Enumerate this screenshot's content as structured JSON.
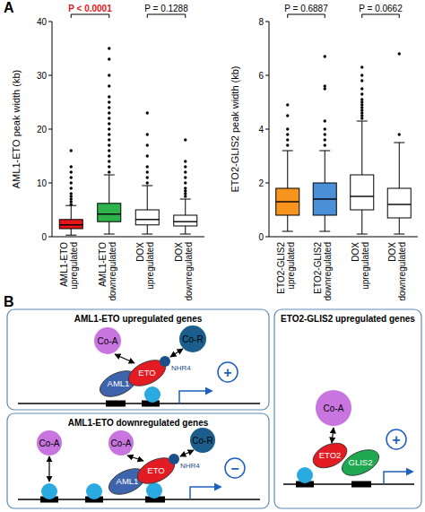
{
  "panel_labels": [
    "A",
    "B"
  ],
  "chart_data": [
    {
      "type": "box",
      "y_label": "AML1-ETO peak width (kb)",
      "categories": [
        "AML1-ETO upregulated",
        "AML1-ETO downregulated",
        "DOX upregulated",
        "DOX downregulated"
      ],
      "colors": [
        "#e3161b",
        "#2db34a",
        "#ffffff",
        "#ffffff"
      ],
      "ylim": [
        0,
        40
      ],
      "yticks": [
        0,
        10,
        20,
        30,
        40
      ],
      "boxes": [
        {
          "min": 0.3,
          "q1": 1.5,
          "median": 2.2,
          "q3": 3.2,
          "max": 5.8,
          "outliers": [
            6,
            6.5,
            7,
            7.5,
            8,
            9,
            10,
            11,
            12,
            13,
            16
          ]
        },
        {
          "min": 0.5,
          "q1": 2.8,
          "median": 4.2,
          "q3": 6.2,
          "max": 11.5,
          "outliers": [
            12,
            13,
            14,
            15,
            16,
            17,
            18,
            19,
            20,
            21,
            22,
            23,
            24,
            25,
            26,
            28,
            30,
            33,
            35
          ]
        },
        {
          "min": 0.5,
          "q1": 2.2,
          "median": 3.2,
          "q3": 5,
          "max": 9.5,
          "outliers": [
            10,
            11,
            12,
            13,
            15,
            17,
            19,
            23
          ]
        },
        {
          "min": 0.5,
          "q1": 2,
          "median": 2.8,
          "q3": 4,
          "max": 7,
          "outliers": [
            7.5,
            8,
            8.5,
            9,
            10,
            11,
            12,
            13,
            14,
            18
          ]
        }
      ],
      "comparisons": [
        {
          "label": "P < 0.0001",
          "groups": [
            0,
            1
          ],
          "color": "#e3161b"
        },
        {
          "label": "P = 0.1288",
          "groups": [
            2,
            3
          ],
          "color": "#000000"
        }
      ]
    },
    {
      "type": "box",
      "y_label": "ETO2-GLIS2 peak width (kb)",
      "categories": [
        "ETO2-GLIS2 upregulated",
        "ETO2-GLIS2 downregulated",
        "DOX upregulated",
        "DOX downregulated"
      ],
      "colors": [
        "#f7941d",
        "#4a90d9",
        "#ffffff",
        "#ffffff"
      ],
      "ylim": [
        0,
        8
      ],
      "yticks": [
        0,
        2,
        4,
        6,
        8
      ],
      "boxes": [
        {
          "min": 0.2,
          "q1": 0.8,
          "median": 1.3,
          "q3": 1.8,
          "max": 3.2,
          "outliers": [
            3.4,
            3.6,
            3.8,
            4.0,
            4.5,
            4.9
          ]
        },
        {
          "min": 0.2,
          "q1": 0.8,
          "median": 1.4,
          "q3": 2.0,
          "max": 3.2,
          "outliers": [
            3.4,
            3.6,
            3.8,
            4.0,
            4.3,
            5.5,
            5.6,
            6.7
          ]
        },
        {
          "min": 0.1,
          "q1": 1.0,
          "median": 1.5,
          "q3": 2.3,
          "max": 4.3,
          "outliers": [
            4.4,
            4.5,
            4.6,
            4.7,
            4.8,
            4.9,
            5.0,
            5.1,
            5.3,
            5.5,
            5.8,
            6.0,
            6.3
          ]
        },
        {
          "min": 0.1,
          "q1": 0.7,
          "median": 1.2,
          "q3": 1.8,
          "max": 3.5,
          "outliers": [
            3.8,
            6.8
          ]
        }
      ],
      "comparisons": [
        {
          "label": "P = 0.6887",
          "groups": [
            0,
            1
          ],
          "color": "#000000"
        },
        {
          "label": "P = 0.0662",
          "groups": [
            2,
            3
          ],
          "color": "#000000"
        }
      ]
    }
  ],
  "diagram": {
    "panels": [
      {
        "title": "AML1-ETO upregulated genes",
        "co_activators": [
          "Co-A"
        ],
        "co_repressor": "Co-R",
        "domain": "NHR4",
        "fusion": [
          "AML1",
          "ETO"
        ],
        "effect": "+"
      },
      {
        "title": "AML1-ETO downregulated genes",
        "co_activators": [
          "Co-A",
          "Co-A"
        ],
        "co_repressor": "Co-R",
        "domain": "NHR4",
        "fusion": [
          "AML1",
          "ETO"
        ],
        "effect": "−"
      },
      {
        "title": "ETO2-GLIS2 upregulated genes",
        "co_activators": [
          "Co-A"
        ],
        "fusion": [
          "ETO2",
          "GLIS2"
        ],
        "effect": "+"
      }
    ]
  }
}
